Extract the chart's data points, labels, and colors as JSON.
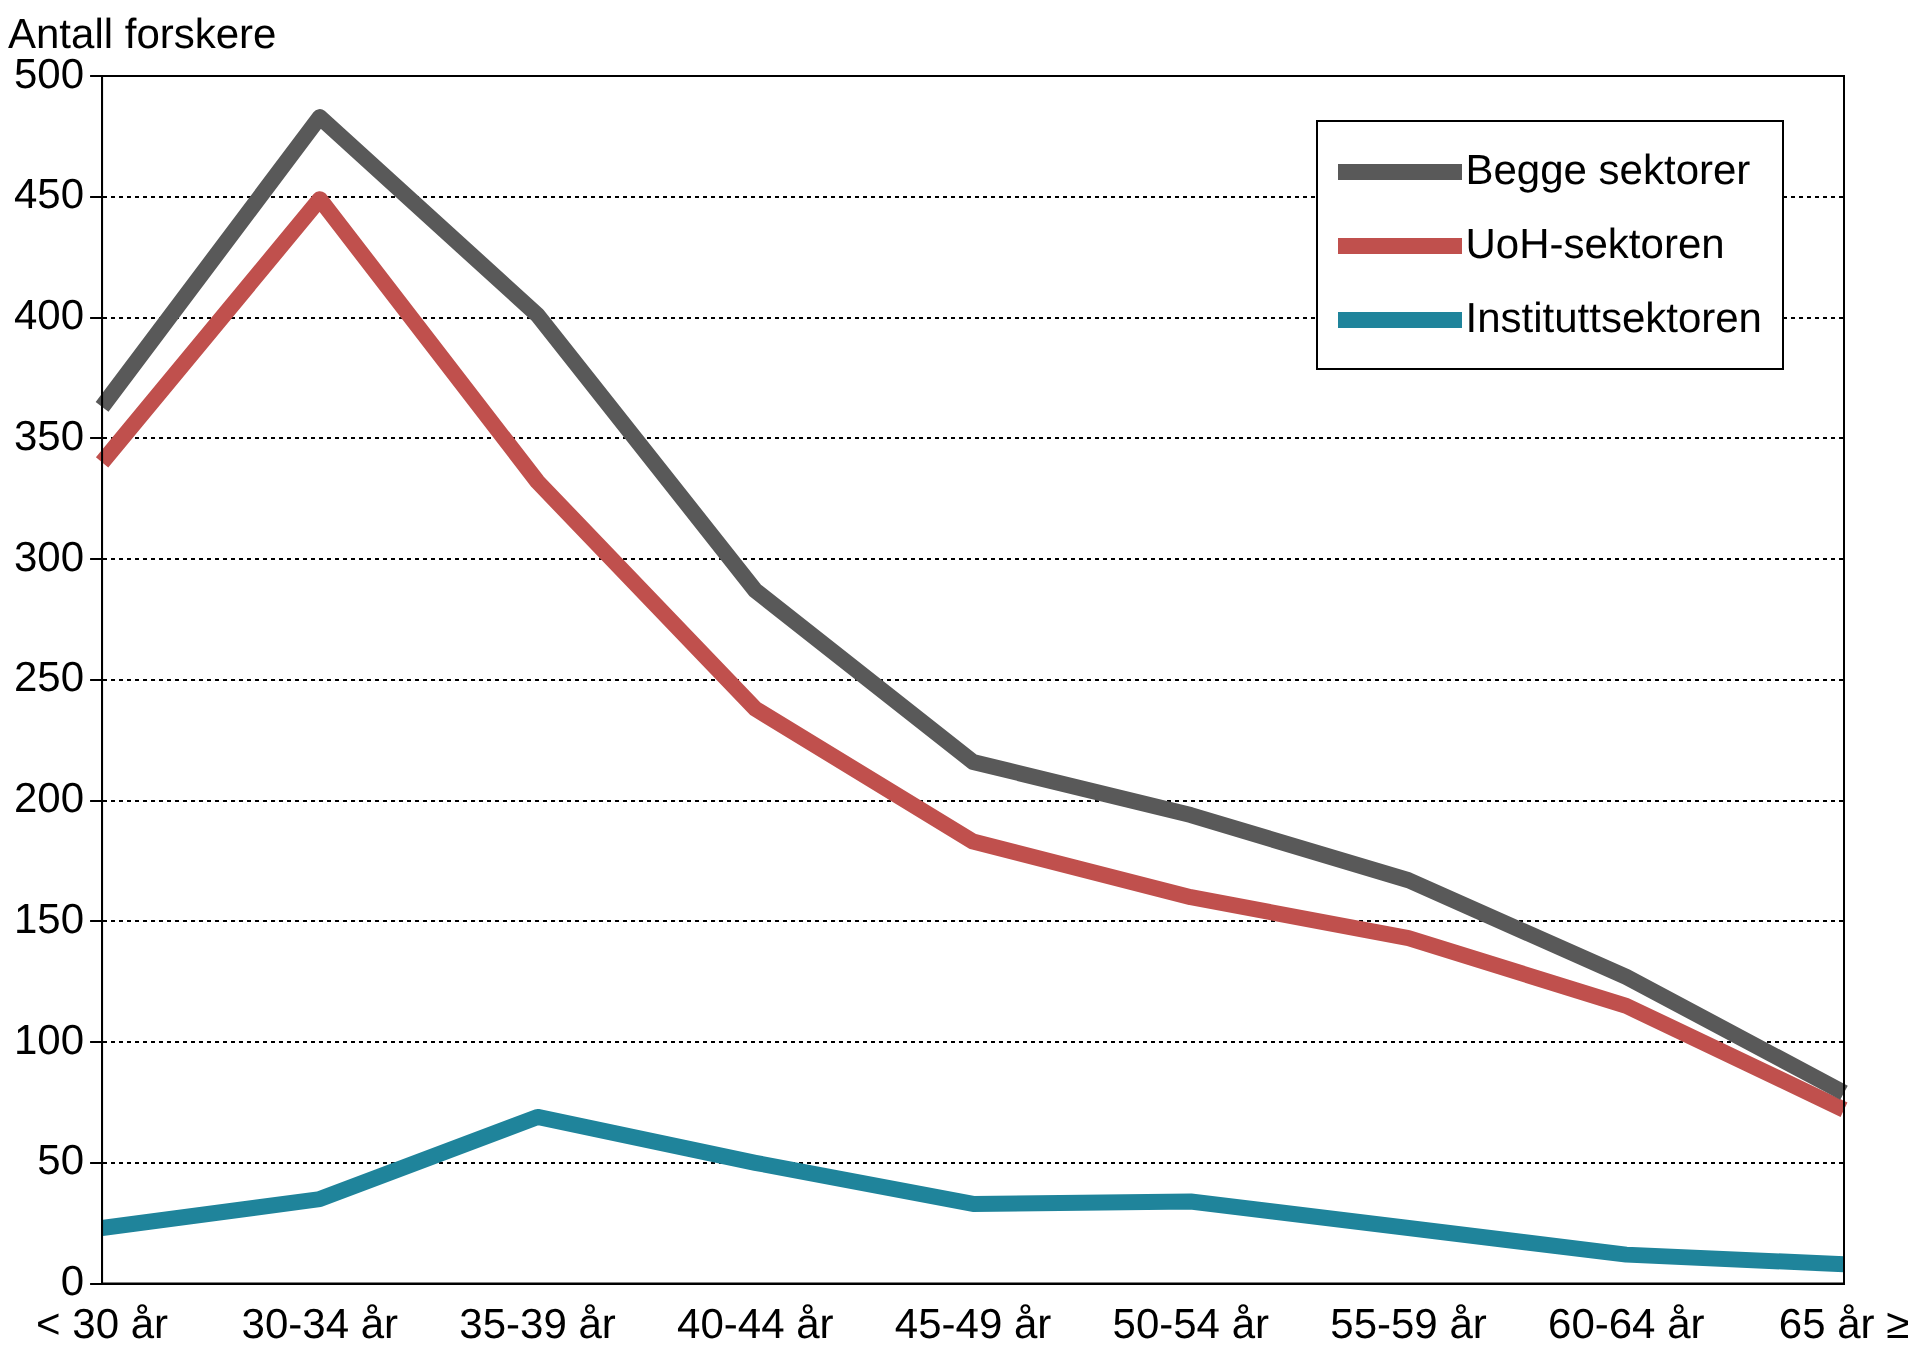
{
  "chart_data": {
    "type": "line",
    "ylabel": "Antall forskere",
    "categories": [
      "< 30 år",
      "30-34 år",
      "35-39 år",
      "40-44 år",
      "45-49 år",
      "50-54 år",
      "55-59 år",
      "60-64 år",
      "65 år ≥"
    ],
    "series": [
      {
        "name": "Begge sektorer",
        "color": "#595959",
        "values": [
          363,
          483,
          401,
          287,
          216,
          194,
          167,
          127,
          79
        ]
      },
      {
        "name": "UoH-sektoren",
        "color": "#c0504d",
        "values": [
          340,
          449,
          332,
          238,
          183,
          160,
          143,
          115,
          72
        ]
      },
      {
        "name": "Instituttsektoren",
        "color": "#1f849b",
        "values": [
          23,
          35,
          69,
          50,
          33,
          34,
          23,
          12,
          8
        ]
      }
    ],
    "ylim": [
      0,
      500
    ],
    "yticks": [
      0,
      50,
      100,
      150,
      200,
      250,
      300,
      350,
      400,
      450,
      500
    ],
    "grid": "y",
    "legend": "top right",
    "marker": "none",
    "line_style": "solid"
  }
}
